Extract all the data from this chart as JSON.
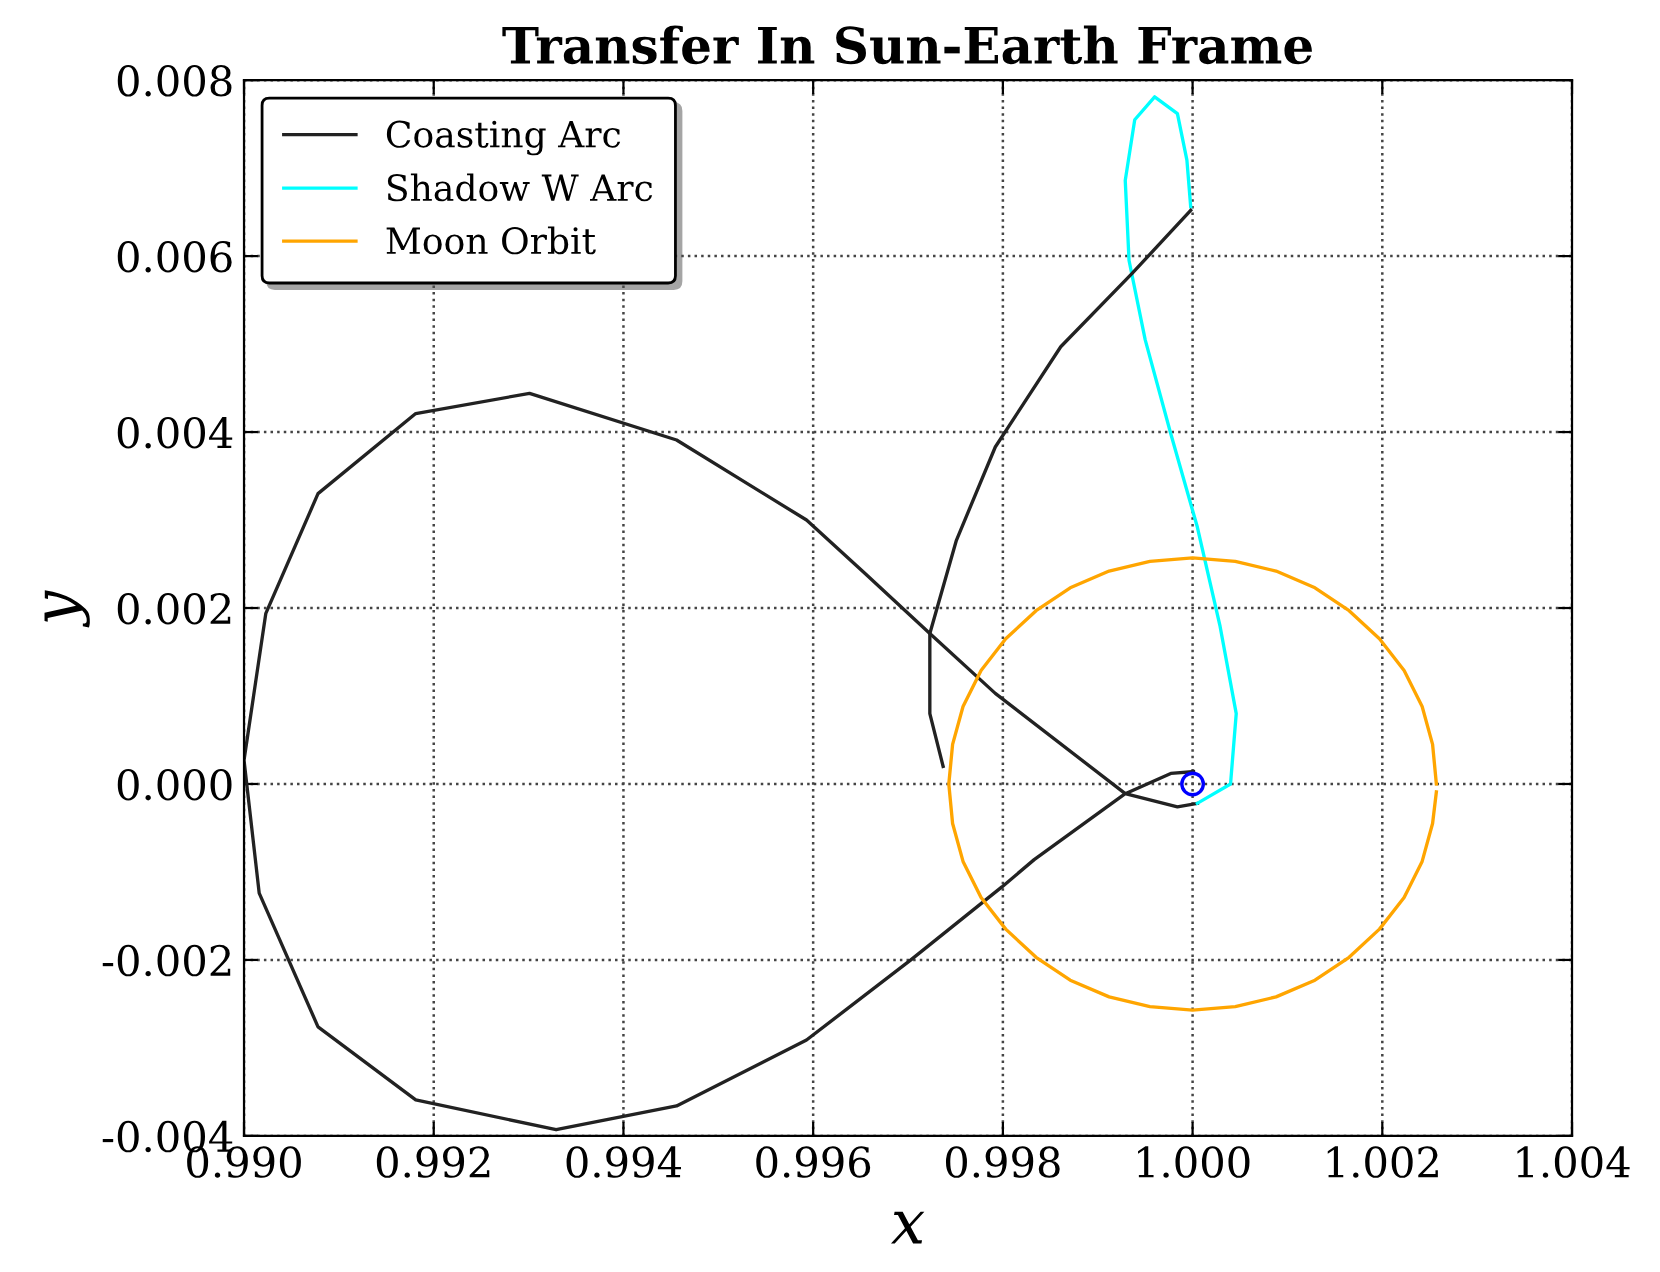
{
  "chart_data": {
    "type": "line",
    "title": "Transfer In Sun-Earth Frame",
    "xlabel": "x",
    "ylabel": "y",
    "xlim": [
      0.99,
      1.004
    ],
    "xticks": [
      {
        "value": 0.99,
        "label": "0.990"
      },
      {
        "value": 0.992,
        "label": "0.992"
      },
      {
        "value": 0.994,
        "label": "0.994"
      },
      {
        "value": 0.996,
        "label": "0.996"
      },
      {
        "value": 0.998,
        "label": "0.998"
      },
      {
        "value": 1.0,
        "label": "1.000"
      },
      {
        "value": 1.002,
        "label": "1.002"
      },
      {
        "value": 1.004,
        "label": "1.004"
      }
    ],
    "ylim": [
      -0.004,
      0.008
    ],
    "yticks": [
      {
        "value": -0.004,
        "label": "-0.004"
      },
      {
        "value": -0.002,
        "label": "-0.002"
      },
      {
        "value": 0.0,
        "label": "0.000"
      },
      {
        "value": 0.002,
        "label": "0.002"
      },
      {
        "value": 0.004,
        "label": "0.004"
      },
      {
        "value": 0.006,
        "label": "0.006"
      },
      {
        "value": 0.008,
        "label": "0.008"
      }
    ],
    "grid": true,
    "legend": "top left",
    "line_style": "solid",
    "series": [
      {
        "name": "Coasting Arc",
        "color": "#222222",
        "x": [
          1.00005,
          0.99984,
          0.99929,
          0.99792,
          0.99723,
          0.99655,
          0.99593,
          0.99456,
          0.99301,
          0.99181,
          0.99078,
          0.99023,
          0.99,
          0.99016,
          0.99078,
          0.99181,
          0.99329,
          0.99456,
          0.99593,
          0.99703,
          0.99799,
          0.99833,
          0.99929,
          0.99977,
          1.00001
        ],
        "values": [
          -0.00022,
          -0.00026,
          -0.00011,
          0.00103,
          0.00171,
          0.00239,
          0.003,
          0.00391,
          0.00444,
          0.00421,
          0.0033,
          0.00194,
          0.00027,
          -0.00124,
          -0.00276,
          -0.00359,
          -0.00393,
          -0.00366,
          -0.00291,
          -0.002,
          -0.00117,
          -0.00086,
          -0.00011,
          0.00012,
          0.00014
        ]
      },
      {
        "name": "Shadow W Arc",
        "color": "#00ffff",
        "x": [
          1.00005,
          1.0004,
          1.00046,
          1.00029,
          1.00005,
          0.99977,
          0.9995,
          0.99933,
          0.99929,
          0.99939,
          0.9996,
          0.99984,
          0.99994,
          0.99998
        ],
        "values": [
          -0.00022,
          0.0,
          0.0008,
          0.00179,
          0.00292,
          0.00398,
          0.00505,
          0.00595,
          0.00686,
          0.00755,
          0.00781,
          0.00762,
          0.00709,
          0.00656
        ]
      },
      {
        "name": "Moon Orbit",
        "color": "#ffa500",
        "x": [
          1.00257,
          1.00253,
          1.00242,
          1.00223,
          1.00197,
          1.00165,
          1.00129,
          1.00088,
          1.00045,
          1.0,
          0.99955,
          0.99912,
          0.99871,
          0.99835,
          0.99803,
          0.99777,
          0.99758,
          0.99747,
          0.99743,
          0.99747,
          0.99758,
          0.99777,
          0.99803,
          0.99835,
          0.99871,
          0.99912,
          0.99955,
          1.0,
          1.00045,
          1.00088,
          1.00129,
          1.00165,
          1.00197,
          1.00223,
          1.00242,
          1.00253,
          1.00257
        ],
        "values": [
          0.0,
          0.00045,
          0.00088,
          0.00129,
          0.00165,
          0.00197,
          0.00223,
          0.00242,
          0.00253,
          0.00257,
          0.00253,
          0.00242,
          0.00223,
          0.00197,
          0.00165,
          0.00129,
          0.00088,
          0.00045,
          0.0,
          -0.00045,
          -0.00088,
          -0.00129,
          -0.00165,
          -0.00197,
          -0.00223,
          -0.00242,
          -0.00253,
          -0.00257,
          -0.00253,
          -0.00242,
          -0.00223,
          -0.00197,
          -0.00165,
          -0.00129,
          -0.00088,
          -0.00045,
          -9e-05
        ]
      },
      {
        "color": "#222222",
        "x": [
          0.99998,
          0.99936,
          0.99861,
          0.99792,
          0.99751,
          0.99723,
          0.99723,
          0.99737
        ],
        "values": [
          0.00652,
          0.0058,
          0.00497,
          0.00383,
          0.00277,
          0.00171,
          0.0008,
          0.0002
        ]
      },
      {
        "type": "scatter",
        "marker": "circle",
        "color": "#0000ff",
        "x": [
          1.0
        ],
        "values": [
          0.0
        ]
      }
    ]
  }
}
